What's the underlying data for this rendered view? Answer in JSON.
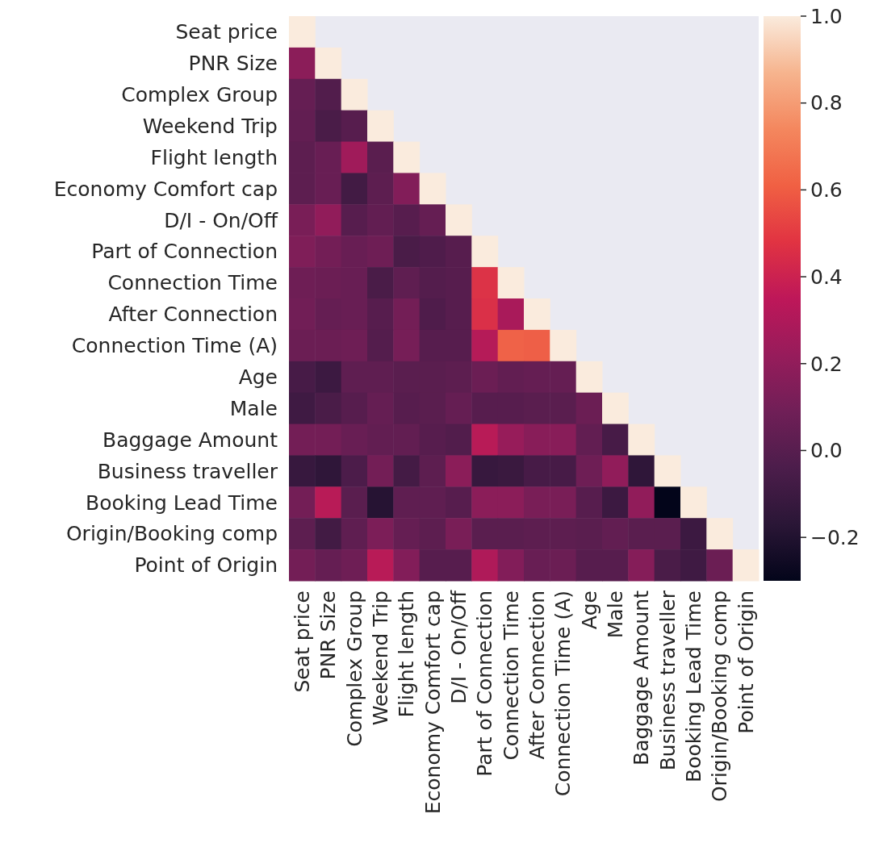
{
  "chart_data": {
    "type": "heatmap",
    "categories": [
      "Seat price",
      "PNR Size",
      "Complex Group",
      "Weekend Trip",
      "Flight length",
      "Economy Comfort cap",
      "D/I - On/Off",
      "Part of Connection",
      "Connection Time",
      "After Connection",
      "Connection Time (A)",
      "Age",
      "Male",
      "Baggage Amount",
      "Business traveller",
      "Booking Lead Time",
      "Origin/Booking comp",
      "Point of Origin"
    ],
    "y_categories": [
      "Seat price",
      "PNR Size",
      "Complex Group",
      "Weekend Trip",
      "Flight length",
      "Economy Comfort cap",
      "D/I - On/Off",
      "Part of Connection",
      "Connection Time",
      "After Connection",
      "Connection Time (A)",
      "Age",
      "Male",
      "Baggage Amount",
      "Business traveller",
      "Booking Lead Time",
      "Origin/Booking comp",
      "Point of Origin"
    ],
    "cells": [
      [
        1,
        null,
        null,
        null,
        null,
        null,
        null,
        null,
        null,
        null,
        null,
        null,
        null,
        null,
        null,
        null,
        null,
        null
      ],
      [
        0.18,
        1,
        null,
        null,
        null,
        null,
        null,
        null,
        null,
        null,
        null,
        null,
        null,
        null,
        null,
        null,
        null,
        null
      ],
      [
        0.05,
        -0.02,
        1,
        null,
        null,
        null,
        null,
        null,
        null,
        null,
        null,
        null,
        null,
        null,
        null,
        null,
        null,
        null
      ],
      [
        0.04,
        -0.05,
        0.0,
        1,
        null,
        null,
        null,
        null,
        null,
        null,
        null,
        null,
        null,
        null,
        null,
        null,
        null,
        null
      ],
      [
        0.02,
        0.06,
        0.25,
        0.01,
        1,
        null,
        null,
        null,
        null,
        null,
        null,
        null,
        null,
        null,
        null,
        null,
        null,
        null
      ],
      [
        0.02,
        0.06,
        -0.08,
        0.02,
        0.15,
        1,
        null,
        null,
        null,
        null,
        null,
        null,
        null,
        null,
        null,
        null,
        null,
        null
      ],
      [
        0.12,
        0.2,
        0.0,
        0.04,
        0.0,
        0.05,
        1,
        null,
        null,
        null,
        null,
        null,
        null,
        null,
        null,
        null,
        null,
        null
      ],
      [
        0.14,
        0.1,
        0.06,
        0.08,
        -0.05,
        -0.03,
        0.0,
        1,
        null,
        null,
        null,
        null,
        null,
        null,
        null,
        null,
        null,
        null
      ],
      [
        0.08,
        0.07,
        0.06,
        -0.05,
        0.03,
        -0.01,
        0.0,
        0.47,
        1,
        null,
        null,
        null,
        null,
        null,
        null,
        null,
        null,
        null
      ],
      [
        0.09,
        0.05,
        0.06,
        0.0,
        0.1,
        -0.03,
        0.0,
        0.46,
        0.28,
        1,
        null,
        null,
        null,
        null,
        null,
        null,
        null,
        null
      ],
      [
        0.07,
        0.07,
        0.08,
        -0.01,
        0.11,
        0.0,
        0.0,
        0.32,
        0.62,
        0.61,
        1,
        null,
        null,
        null,
        null,
        null,
        null,
        null
      ],
      [
        -0.06,
        -0.1,
        0.03,
        0.03,
        0.01,
        0.01,
        0.02,
        0.07,
        0.04,
        0.05,
        0.05,
        1,
        null,
        null,
        null,
        null,
        null,
        null
      ],
      [
        -0.09,
        -0.05,
        0.0,
        0.05,
        0.0,
        0.01,
        0.05,
        0.0,
        0.0,
        0.01,
        0.01,
        0.07,
        1,
        null,
        null,
        null,
        null,
        null
      ],
      [
        0.1,
        0.1,
        0.06,
        0.04,
        0.04,
        0.0,
        -0.02,
        0.33,
        0.22,
        0.17,
        0.17,
        0.04,
        -0.06,
        1,
        null,
        null,
        null,
        null
      ],
      [
        -0.12,
        -0.15,
        -0.04,
        0.1,
        -0.07,
        0.02,
        0.18,
        -0.12,
        -0.11,
        -0.06,
        -0.06,
        0.08,
        0.2,
        -0.15,
        1,
        null,
        null,
        null
      ],
      [
        0.1,
        0.33,
        0.01,
        -0.18,
        0.03,
        0.03,
        0.0,
        0.18,
        0.18,
        0.12,
        0.12,
        0.0,
        -0.1,
        0.2,
        -0.3,
        1,
        null,
        null
      ],
      [
        0.02,
        -0.08,
        0.03,
        0.13,
        0.05,
        0.02,
        0.12,
        0.01,
        0.01,
        0.02,
        0.02,
        0.01,
        0.04,
        0.01,
        0.01,
        -0.1,
        1,
        null
      ],
      [
        0.1,
        0.05,
        0.08,
        0.33,
        0.15,
        0.0,
        0.0,
        0.3,
        0.15,
        0.06,
        0.07,
        0.0,
        0.0,
        0.16,
        -0.05,
        -0.09,
        0.07,
        1
      ]
    ],
    "clim": [
      -0.3,
      1
    ],
    "cticks": [
      {
        "value": -0.2,
        "label": "−0.2"
      },
      {
        "value": 0,
        "label": "0.0"
      },
      {
        "value": 0.2,
        "label": "0.2"
      },
      {
        "value": 0.4,
        "label": "0.4"
      },
      {
        "value": 0.6,
        "label": "0.6"
      },
      {
        "value": 0.8,
        "label": "0.8"
      },
      {
        "value": 1,
        "label": "1.0"
      }
    ]
  }
}
